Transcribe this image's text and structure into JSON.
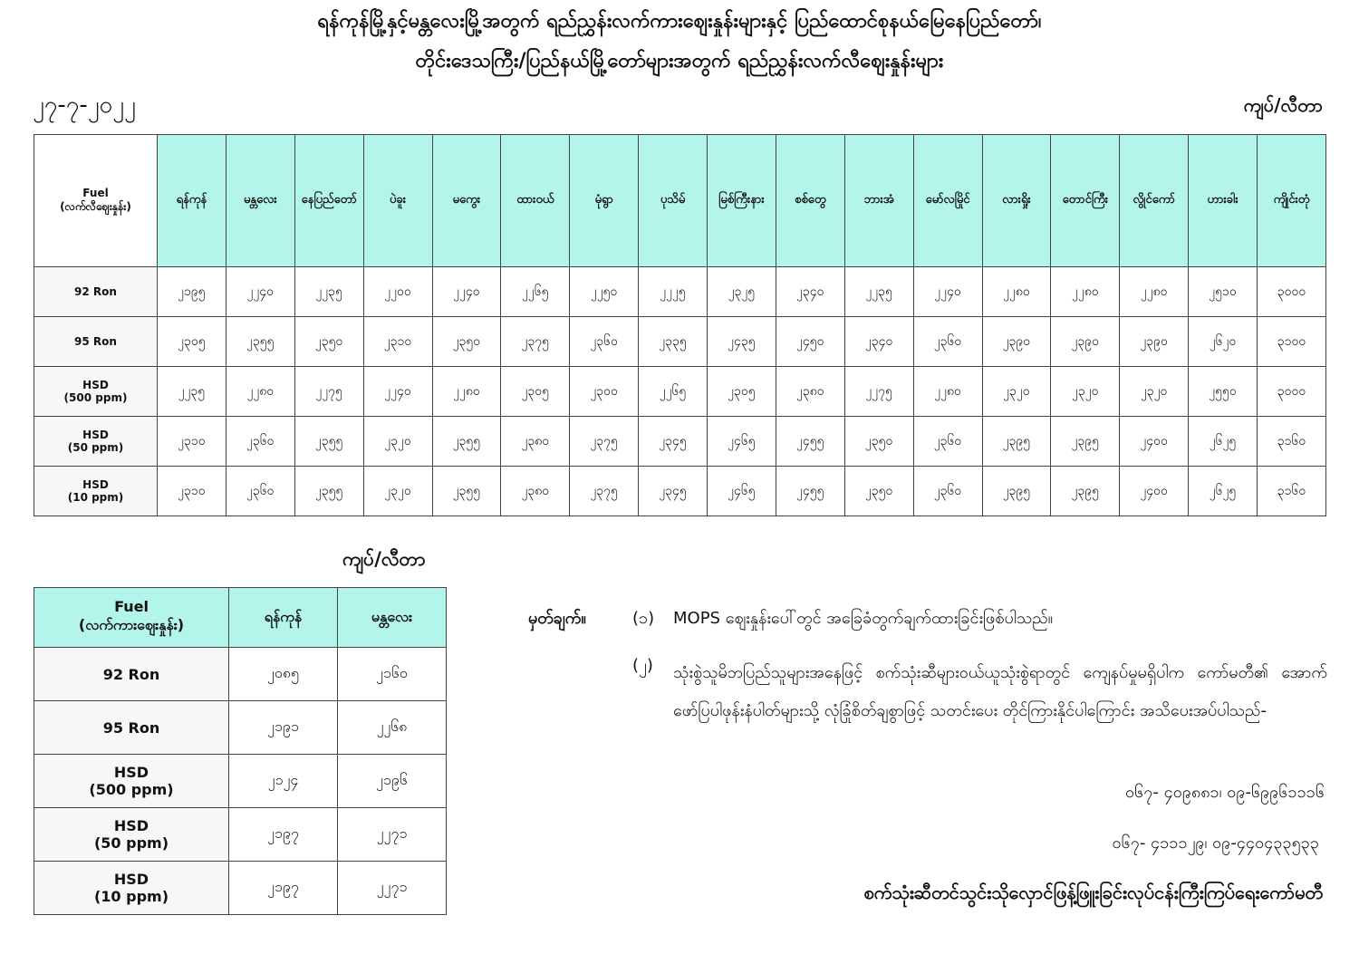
{
  "title_line1": "ရန်ကုန်မြို့နှင့်မန္တလေးမြို့အတွက် ရည်ညွှန်းလက်ကားဈေးနှုန်းများနှင့် ပြည်ထောင်စုနယ်မြေနေပြည်တော်၊",
  "title_line2": "တိုင်းဒေသကြီး/ပြည်နယ်မြို့တော်များအတွက် ရည်ညွှန်းလက်လီဈေးနှုန်းများ",
  "date": "၂၇-၇-၂၀၂၂",
  "unit": "ကျပ်/လီတာ",
  "retail": {
    "fuel_header": "Fuel",
    "fuel_subheader": "(လက်လီဈေးနှုန်း)",
    "cities": [
      "ရန်ကုန်",
      "မန္တလေး",
      "နေပြည်တော်",
      "ပဲခူး",
      "မကွေး",
      "ထားဝယ်",
      "မုံရွာ",
      "ပုသိမ်",
      "မြစ်ကြီးနား",
      "စစ်တွေ",
      "ဘားအံ",
      "မော်လမြိုင်",
      "လားရှိုး",
      "တောင်ကြီး",
      "လွိုင်ကော်",
      "ဟားခါး",
      "ကျိုင်းတုံ"
    ],
    "rows": [
      {
        "fuel": "92 Ron",
        "sub": "",
        "prices": [
          "၂၁၉၅",
          "၂၂၄၀",
          "၂၂၃၅",
          "၂၂၀၀",
          "၂၂၄၀",
          "၂၂၆၅",
          "၂၂၅၀",
          "၂၂၂၅",
          "၂၃၂၅",
          "၂၃၄၀",
          "၂၂၃၅",
          "၂၂၄၀",
          "၂၂၈၀",
          "၂၂၈၀",
          "၂၂၈၀",
          "၂၅၁၀",
          "၃၀၀၀"
        ]
      },
      {
        "fuel": "95 Ron",
        "sub": "",
        "prices": [
          "၂၃၀၅",
          "၂၃၅၅",
          "၂၃၅၀",
          "၂၃၁၀",
          "၂၃၅၀",
          "၂၃၇၅",
          "၂၃၆၀",
          "၂၃၃၅",
          "၂၄၃၅",
          "၂၄၅၀",
          "၂၃၄၀",
          "၂၃၆၀",
          "၂၃၉၀",
          "၂၃၉၀",
          "၂၃၉၀",
          "၂၆၂၀",
          "၃၁၀၀"
        ]
      },
      {
        "fuel": "HSD",
        "sub": "(500 ppm)",
        "prices": [
          "၂၂၃၅",
          "၂၂၈၀",
          "၂၂၇၅",
          "၂၂၄၀",
          "၂၂၈၀",
          "၂၃၀၅",
          "၂၃၀၀",
          "၂၂၆၅",
          "၂၃၀၅",
          "၂၃၈၀",
          "၂၂၇၅",
          "၂၂၈၀",
          "၂၃၂၀",
          "၂၃၂၀",
          "၂၃၂၀",
          "၂၅၅၀",
          "၃၀၀၀"
        ]
      },
      {
        "fuel": "HSD",
        "sub": "(50 ppm)",
        "prices": [
          "၂၃၁၀",
          "၂၃၆၀",
          "၂၃၅၅",
          "၂၃၂၀",
          "၂၃၅၅",
          "၂၃၈၀",
          "၂၃၇၅",
          "၂၃၄၅",
          "၂၄၆၅",
          "၂၄၅၅",
          "၂၃၅၀",
          "၂၃၆၀",
          "၂၃၉၅",
          "၂၃၉၅",
          "၂၄၀၀",
          "၂၆၂၅",
          "၃၁၆၀"
        ]
      },
      {
        "fuel": "HSD",
        "sub": "(10 ppm)",
        "prices": [
          "၂၃၁၀",
          "၂၃၆၀",
          "၂၃၅၅",
          "၂၃၂၀",
          "၂၃၅၅",
          "၂၃၈၀",
          "၂၃၇၅",
          "၂၃၄၅",
          "၂၄၆၅",
          "၂၄၅၅",
          "၂၃၅၀",
          "၂၃၆၀",
          "၂၃၉၅",
          "၂၃၉၅",
          "၂၄၀၀",
          "၂၆၂၅",
          "၃၁၆၀"
        ]
      }
    ]
  },
  "wholesale": {
    "unit": "ကျပ်/လီတာ",
    "fuel_header": "Fuel",
    "fuel_subheader": "(လက်ကားဈေးနှုန်း)",
    "cities": [
      "ရန်ကုန်",
      "မန္တလေး"
    ],
    "rows": [
      {
        "fuel": "92 Ron",
        "sub": "",
        "prices": [
          "၂၀၈၅",
          "၂၁၆၀"
        ]
      },
      {
        "fuel": "95 Ron",
        "sub": "",
        "prices": [
          "၂၁၉၁",
          "၂၂၆၈"
        ]
      },
      {
        "fuel": "HSD",
        "sub": "(500 ppm)",
        "prices": [
          "၂၁၂၄",
          "၂၁၉၆"
        ]
      },
      {
        "fuel": "HSD",
        "sub": "(50 ppm)",
        "prices": [
          "၂၁၉၇",
          "၂၂၇၁"
        ]
      },
      {
        "fuel": "HSD",
        "sub": "(10 ppm)",
        "prices": [
          "၂၁၉၇",
          "၂၂၇၁"
        ]
      }
    ]
  },
  "notes": {
    "label": "မှတ်ချက်။",
    "n1_num": "(၁)",
    "n1": "MOPS ဈေးနှုန်းပေါ်တွင် အခြေခံတွက်ချက်ထားခြင်းဖြစ်ပါသည်။",
    "n2_num": "(၂)",
    "n2": "သုံးစွဲသူမိဘပြည်သူများအနေဖြင့် စက်သုံးဆီများဝယ်ယူသုံးစွဲရာတွင် ကျေနပ်မှုမရှိပါက ကော်မတီ၏ အောက်ဖော်ပြပါဖုန်းနံပါတ်များသို့ လုံခြုံစိတ်ချစွာဖြင့် သတင်းပေး တိုင်ကြားနိုင်ပါကြောင်း အသိပေးအပ်ပါသည်-",
    "phone1": "၀၆၇- ၄၀၉၈၈၁၊ ၀၉-၆၉၉၆၁၁၁၆",
    "phone2": "၀၆၇- ၄၁၁၁၂၉၊ ၀၉-၄၄၀၄၃၃၅၃၃",
    "signature": "စက်သုံးဆီတင်သွင်းသိုလှောင်ဖြန့်ဖြူးခြင်းလုပ်ငန်းကြီးကြပ်ရေးကော်မတီ"
  }
}
